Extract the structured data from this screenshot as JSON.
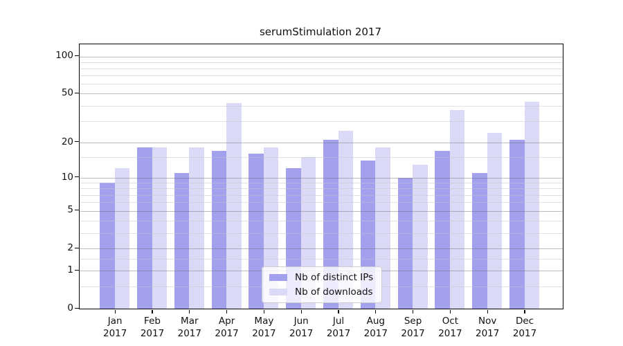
{
  "chart_data": {
    "type": "bar",
    "title": "serumStimulation 2017",
    "categories": [
      "Jan",
      "Feb",
      "Mar",
      "Apr",
      "May",
      "Jun",
      "Jul",
      "Aug",
      "Sep",
      "Oct",
      "Nov",
      "Dec"
    ],
    "category_year": "2017",
    "series": [
      {
        "name": "Nb of distinct IPs",
        "color": "#a3a1ee",
        "values": [
          9,
          18,
          11,
          17,
          16,
          12,
          21,
          14,
          10,
          17,
          11,
          21
        ]
      },
      {
        "name": "Nb of downloads",
        "color": "#dadaf7",
        "values": [
          12,
          18,
          18,
          42,
          18,
          15,
          25,
          18,
          13,
          37,
          24,
          43
        ]
      }
    ],
    "ylabel": "",
    "xlabel": "",
    "yscale": "log10(1+x)",
    "ylim": [
      0,
      125
    ],
    "yticks_major": [
      0,
      1,
      2,
      5,
      10,
      20,
      50,
      100
    ],
    "yticks_minor": [
      0.5,
      1.5,
      3,
      4,
      6,
      7,
      8,
      9,
      15,
      30,
      40,
      60,
      70,
      80,
      90
    ],
    "grid": "major and minor horizontal gridlines, drawn over bars",
    "legend_position": "lower center",
    "colors": {
      "major_grid": "#b3b3b3",
      "minor_grid": "#e3e3e3",
      "spine": "#000000",
      "background": "#ffffff"
    }
  }
}
